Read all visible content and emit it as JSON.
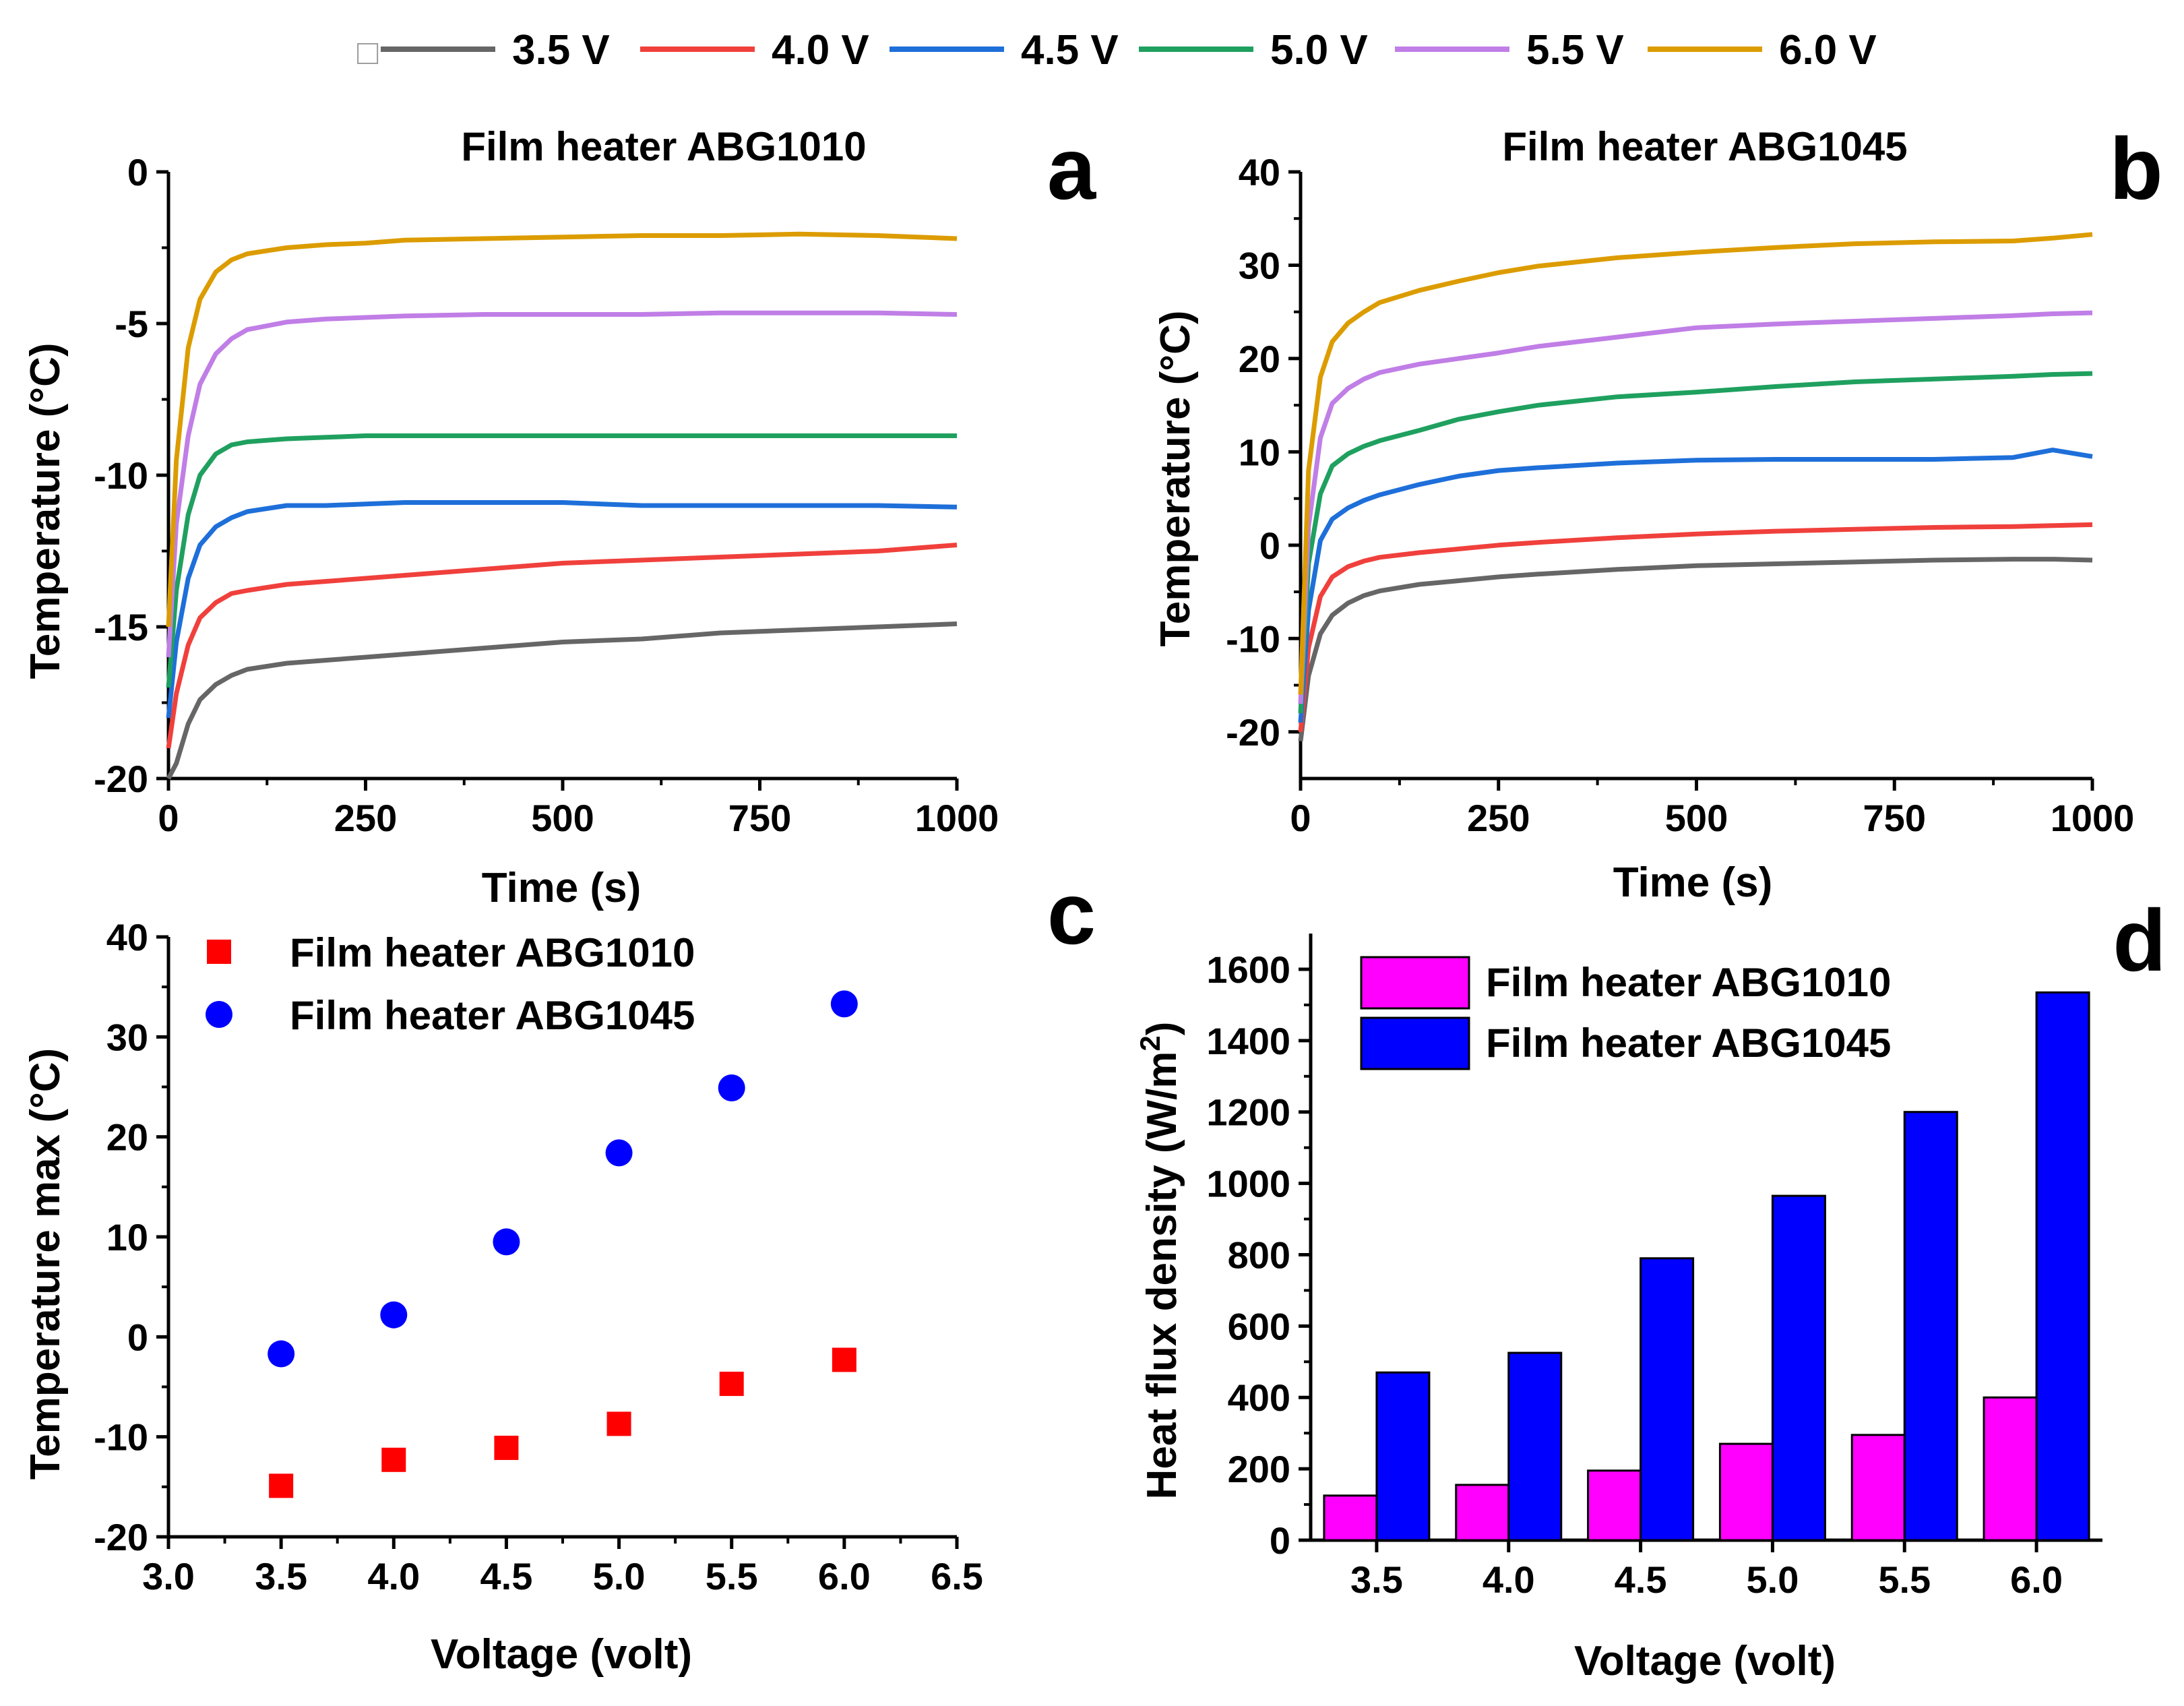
{
  "top_legend": {
    "marker_glyph": "□",
    "entries": [
      {
        "label": "3.5 V",
        "color": "#666666"
      },
      {
        "label": "4.0 V",
        "color": "#f0403c"
      },
      {
        "label": "4.5 V",
        "color": "#1e6fd9"
      },
      {
        "label": "5.0 V",
        "color": "#1fa05f"
      },
      {
        "label": "5.5 V",
        "color": "#c07ee6"
      },
      {
        "label": "6.0 V",
        "color": "#dc9c00"
      }
    ]
  },
  "chart_data": [
    {
      "id": "a",
      "panel_letter": "a",
      "type": "line",
      "title": "Film  heater ABG1010",
      "xlabel": "Time (s)",
      "ylabel": "Temperature (°C)",
      "xlim": [
        0,
        1000
      ],
      "ylim": [
        -20,
        0
      ],
      "xticks": [
        "0",
        "250",
        "500",
        "750",
        "1000"
      ],
      "yticks": [
        "-20",
        "-15",
        "-10",
        "-5",
        "0"
      ],
      "x": [
        0,
        10,
        25,
        40,
        60,
        80,
        100,
        150,
        200,
        250,
        300,
        400,
        500,
        600,
        700,
        800,
        900,
        1000
      ],
      "series": [
        {
          "name": "3.5 V",
          "color": "#666666",
          "values": [
            -20.0,
            -19.5,
            -18.2,
            -17.4,
            -16.9,
            -16.6,
            -16.4,
            -16.2,
            -16.1,
            -16.0,
            -15.9,
            -15.7,
            -15.5,
            -15.4,
            -15.2,
            -15.1,
            -15.0,
            -14.9
          ]
        },
        {
          "name": "4.0 V",
          "color": "#f0403c",
          "values": [
            -19.0,
            -17.2,
            -15.6,
            -14.7,
            -14.2,
            -13.9,
            -13.8,
            -13.6,
            -13.5,
            -13.4,
            -13.3,
            -13.1,
            -12.9,
            -12.8,
            -12.7,
            -12.6,
            -12.5,
            -12.3
          ]
        },
        {
          "name": "4.5 V",
          "color": "#1e6fd9",
          "values": [
            -18.0,
            -15.5,
            -13.4,
            -12.3,
            -11.7,
            -11.4,
            -11.2,
            -11.0,
            -11.0,
            -10.95,
            -10.9,
            -10.9,
            -10.9,
            -11.0,
            -11.0,
            -11.0,
            -11.0,
            -11.05
          ]
        },
        {
          "name": "5.0 V",
          "color": "#1fa05f",
          "values": [
            -17.0,
            -13.8,
            -11.3,
            -10.0,
            -9.3,
            -9.0,
            -8.9,
            -8.8,
            -8.75,
            -8.7,
            -8.7,
            -8.7,
            -8.7,
            -8.7,
            -8.7,
            -8.7,
            -8.7,
            -8.7
          ]
        },
        {
          "name": "5.5 V",
          "color": "#c07ee6",
          "values": [
            -16.0,
            -11.6,
            -8.7,
            -7.0,
            -6.0,
            -5.5,
            -5.2,
            -4.95,
            -4.85,
            -4.8,
            -4.75,
            -4.7,
            -4.7,
            -4.7,
            -4.65,
            -4.65,
            -4.65,
            -4.7
          ]
        },
        {
          "name": "6.0 V",
          "color": "#dc9c00",
          "values": [
            -15.0,
            -9.5,
            -5.8,
            -4.2,
            -3.3,
            -2.9,
            -2.7,
            -2.5,
            -2.4,
            -2.35,
            -2.25,
            -2.2,
            -2.15,
            -2.1,
            -2.1,
            -2.05,
            -2.1,
            -2.2
          ]
        }
      ]
    },
    {
      "id": "b",
      "panel_letter": "b",
      "type": "line",
      "title": "Film  heater ABG1045",
      "xlabel": "Time (s)",
      "ylabel": "Temperature (°C)",
      "xlim": [
        0,
        1000
      ],
      "ylim": [
        -25,
        40
      ],
      "xticks": [
        "0",
        "250",
        "500",
        "750",
        "1000"
      ],
      "yticks": [
        "-20",
        "-10",
        "0",
        "10",
        "20",
        "30",
        "40"
      ],
      "x": [
        0,
        10,
        25,
        40,
        60,
        80,
        100,
        150,
        200,
        250,
        300,
        400,
        500,
        600,
        700,
        800,
        900,
        950,
        1000
      ],
      "series": [
        {
          "name": "3.5 V",
          "color": "#666666",
          "values": [
            -21.0,
            -14.0,
            -9.5,
            -7.5,
            -6.2,
            -5.4,
            -4.9,
            -4.2,
            -3.8,
            -3.4,
            -3.1,
            -2.6,
            -2.2,
            -2.0,
            -1.8,
            -1.6,
            -1.5,
            -1.5,
            -1.6
          ]
        },
        {
          "name": "4.0 V",
          "color": "#f0403c",
          "values": [
            -20.0,
            -11.0,
            -5.5,
            -3.4,
            -2.3,
            -1.7,
            -1.3,
            -0.8,
            -0.4,
            0.0,
            0.3,
            0.8,
            1.2,
            1.5,
            1.7,
            1.9,
            2.0,
            2.1,
            2.2
          ]
        },
        {
          "name": "4.5 V",
          "color": "#1e6fd9",
          "values": [
            -19.0,
            -7.0,
            0.5,
            2.8,
            4.0,
            4.8,
            5.4,
            6.5,
            7.4,
            8.0,
            8.3,
            8.8,
            9.1,
            9.2,
            9.2,
            9.2,
            9.4,
            10.2,
            9.5
          ]
        },
        {
          "name": "5.0 V",
          "color": "#1fa05f",
          "values": [
            -18.0,
            -2.0,
            5.5,
            8.5,
            9.8,
            10.6,
            11.2,
            12.3,
            13.5,
            14.3,
            15.0,
            15.9,
            16.4,
            17.0,
            17.5,
            17.8,
            18.1,
            18.3,
            18.4
          ]
        },
        {
          "name": "5.5 V",
          "color": "#c07ee6",
          "values": [
            -17.0,
            2.0,
            11.5,
            15.2,
            16.8,
            17.8,
            18.5,
            19.4,
            20.0,
            20.6,
            21.3,
            22.3,
            23.3,
            23.7,
            24.0,
            24.3,
            24.6,
            24.8,
            24.9
          ]
        },
        {
          "name": "6.0 V",
          "color": "#dc9c00",
          "values": [
            -16.0,
            8.0,
            18.0,
            21.8,
            23.8,
            25.0,
            26.0,
            27.3,
            28.3,
            29.2,
            29.9,
            30.8,
            31.4,
            31.9,
            32.3,
            32.5,
            32.6,
            32.9,
            33.3
          ]
        }
      ]
    },
    {
      "id": "c",
      "panel_letter": "c",
      "type": "scatter",
      "xlabel": "Voltage (volt)",
      "ylabel": "Temperature max (°C)",
      "xlim": [
        3.0,
        6.5
      ],
      "ylim": [
        -20,
        40
      ],
      "xticks": [
        "3.0",
        "3.5",
        "4.0",
        "4.5",
        "5.0",
        "5.5",
        "6.0",
        "6.5"
      ],
      "yticks": [
        "-20",
        "-10",
        "0",
        "10",
        "20",
        "30",
        "40"
      ],
      "x": [
        3.5,
        4.0,
        4.5,
        5.0,
        5.5,
        6.0
      ],
      "series": [
        {
          "name": "Film  heater ABG1010",
          "marker": "square",
          "color": "#ff0000",
          "values": [
            -14.9,
            -12.3,
            -11.1,
            -8.7,
            -4.7,
            -2.3
          ]
        },
        {
          "name": "Film  heater ABG1045",
          "marker": "circle",
          "color": "#0000ff",
          "values": [
            -1.7,
            2.2,
            9.5,
            18.4,
            24.9,
            33.3
          ]
        }
      ]
    },
    {
      "id": "d",
      "panel_letter": "d",
      "type": "bar",
      "xlabel": "Voltage (volt)",
      "ylabel_main": "Heat flux density (W/m",
      "ylabel_sup": "2",
      "ylabel_close": ")",
      "ylim": [
        0,
        1700
      ],
      "categories": [
        "3.5",
        "4.0",
        "4.5",
        "5.0",
        "5.5",
        "6.0"
      ],
      "yticks": [
        "0",
        "200",
        "400",
        "600",
        "800",
        "1000",
        "1200",
        "1400",
        "1600"
      ],
      "series": [
        {
          "name": "Film  heater ABG1010",
          "color": "#ff00ff",
          "values": [
            125,
            155,
            195,
            270,
            295,
            400
          ]
        },
        {
          "name": "Film  heater ABG1045",
          "color": "#0000ff",
          "values": [
            470,
            525,
            790,
            965,
            1200,
            1535
          ]
        }
      ]
    }
  ]
}
